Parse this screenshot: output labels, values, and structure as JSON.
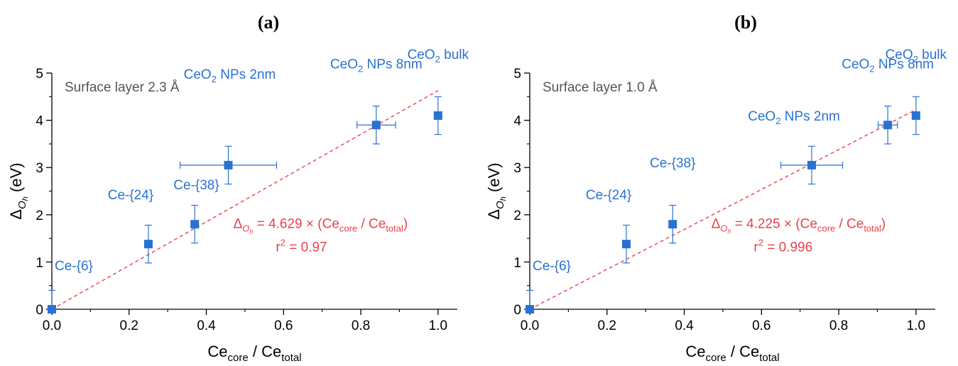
{
  "colors": {
    "data": "#2a72d2",
    "fit": "#e8424a",
    "axis": "#000000",
    "note": "#555555"
  },
  "chart_data": [
    {
      "type": "scatter",
      "panel_label": "(a)",
      "note": "Surface layer 2.3 Å",
      "xlabel": {
        "main": "Ce",
        "sub1": "core",
        "mid": " / Ce",
        "sub2": "total"
      },
      "ylabel": {
        "main": "Δ",
        "sub": "O",
        "subsub": "h",
        "tail": " (eV)"
      },
      "xlim": [
        0,
        1.05
      ],
      "ylim": [
        0,
        5
      ],
      "xticks": [
        0.0,
        0.2,
        0.4,
        0.6,
        0.8,
        1.0
      ],
      "xtick_labels": [
        "0.0",
        "0.2",
        "0.4",
        "0.6",
        "0.8",
        "1.0"
      ],
      "yticks": [
        0,
        1,
        2,
        3,
        4,
        5
      ],
      "ytick_labels": [
        "0",
        "1",
        "2",
        "3",
        "4",
        "5"
      ],
      "grid": false,
      "points": [
        {
          "x": 0.0,
          "y": 0.0,
          "xerr": 0,
          "yerr": 0.4,
          "label": {
            "pre": "Ce-{6}"
          },
          "label_pos": "right-above"
        },
        {
          "x": 0.25,
          "y": 1.38,
          "xerr": 0,
          "yerr": 0.4,
          "label": {
            "pre": "Ce-{24}"
          },
          "label_pos": "above-left"
        },
        {
          "x": 0.37,
          "y": 1.8,
          "xerr": 0,
          "yerr": 0.4,
          "label": null
        },
        {
          "x": 0.457,
          "y": 3.05,
          "xerr": 0.125,
          "yerr": 0.4,
          "label": {
            "pre": "Ce-{38}"
          },
          "label_pos": "below-left"
        },
        {
          "x": 0.84,
          "y": 3.9,
          "xerr": 0.05,
          "yerr": 0.4,
          "label": {
            "pre": "CeO",
            "sub": "2",
            "post": " NPs 8nm"
          },
          "label_pos": "above"
        },
        {
          "x": 1.0,
          "y": 4.1,
          "xerr": 0,
          "yerr": 0.4,
          "label": {
            "pre": "CeO",
            "sub": "2",
            "post": " bulk"
          },
          "label_pos": "above"
        }
      ],
      "extra_labels": [
        {
          "text": {
            "pre": "CeO",
            "sub": "2",
            "post": " NPs 2nm"
          },
          "near_point": 3
        }
      ],
      "fit": {
        "slope": 4.629,
        "intercept": 0,
        "x_range": [
          0,
          1.0
        ],
        "equation": {
          "delta": "Δ",
          "sub": "O",
          "subsub": "h",
          "mid": " = 4.629 × (Ce",
          "sub1": "core",
          "mid2": " / Ce",
          "sub2": "total",
          "end": ")"
        },
        "r2": {
          "pre": "r",
          "sup": "2",
          "post": " = 0.97"
        }
      }
    },
    {
      "type": "scatter",
      "panel_label": "(b)",
      "note": "Surface layer 1.0 Å",
      "xlabel": {
        "main": "Ce",
        "sub1": "core",
        "mid": " / Ce",
        "sub2": "total"
      },
      "ylabel": {
        "main": "Δ",
        "sub": "O",
        "subsub": "h",
        "tail": " (eV)"
      },
      "xlim": [
        0,
        1.05
      ],
      "ylim": [
        0,
        5
      ],
      "xticks": [
        0.0,
        0.2,
        0.4,
        0.6,
        0.8,
        1.0
      ],
      "xtick_labels": [
        "0.0",
        "0.2",
        "0.4",
        "0.6",
        "0.8",
        "1.0"
      ],
      "yticks": [
        0,
        1,
        2,
        3,
        4,
        5
      ],
      "ytick_labels": [
        "0",
        "1",
        "2",
        "3",
        "4",
        "5"
      ],
      "grid": false,
      "points": [
        {
          "x": 0.0,
          "y": 0.0,
          "xerr": 0,
          "yerr": 0.4,
          "label": {
            "pre": "Ce-{6}"
          },
          "label_pos": "right-above"
        },
        {
          "x": 0.25,
          "y": 1.38,
          "xerr": 0,
          "yerr": 0.4,
          "label": {
            "pre": "Ce-{24}"
          },
          "label_pos": "above-left"
        },
        {
          "x": 0.37,
          "y": 1.8,
          "xerr": 0,
          "yerr": 0.4,
          "label": {
            "pre": "Ce-{38}"
          },
          "label_pos": "above"
        },
        {
          "x": 0.73,
          "y": 3.05,
          "xerr": 0.08,
          "yerr": 0.4,
          "label": {
            "pre": "CeO",
            "sub": "2",
            "post": " NPs 2nm"
          },
          "label_pos": "above-left"
        },
        {
          "x": 0.927,
          "y": 3.9,
          "xerr": 0.025,
          "yerr": 0.4,
          "label": {
            "pre": "CeO",
            "sub": "2",
            "post": " NPs 8nm"
          },
          "label_pos": "above"
        },
        {
          "x": 1.0,
          "y": 4.1,
          "xerr": 0,
          "yerr": 0.4,
          "label": {
            "pre": "CeO",
            "sub": "2",
            "post": " bulk"
          },
          "label_pos": "above"
        }
      ],
      "extra_labels": [],
      "fit": {
        "slope": 4.225,
        "intercept": 0,
        "x_range": [
          0,
          1.0
        ],
        "equation": {
          "delta": "Δ",
          "sub": "O",
          "subsub": "h",
          "mid": " = 4.225 × (Ce",
          "sub1": "core",
          "mid2": " / Ce",
          "sub2": "total",
          "end": ")"
        },
        "r2": {
          "pre": "r",
          "sup": "2",
          "post": " = 0.996"
        }
      }
    }
  ]
}
